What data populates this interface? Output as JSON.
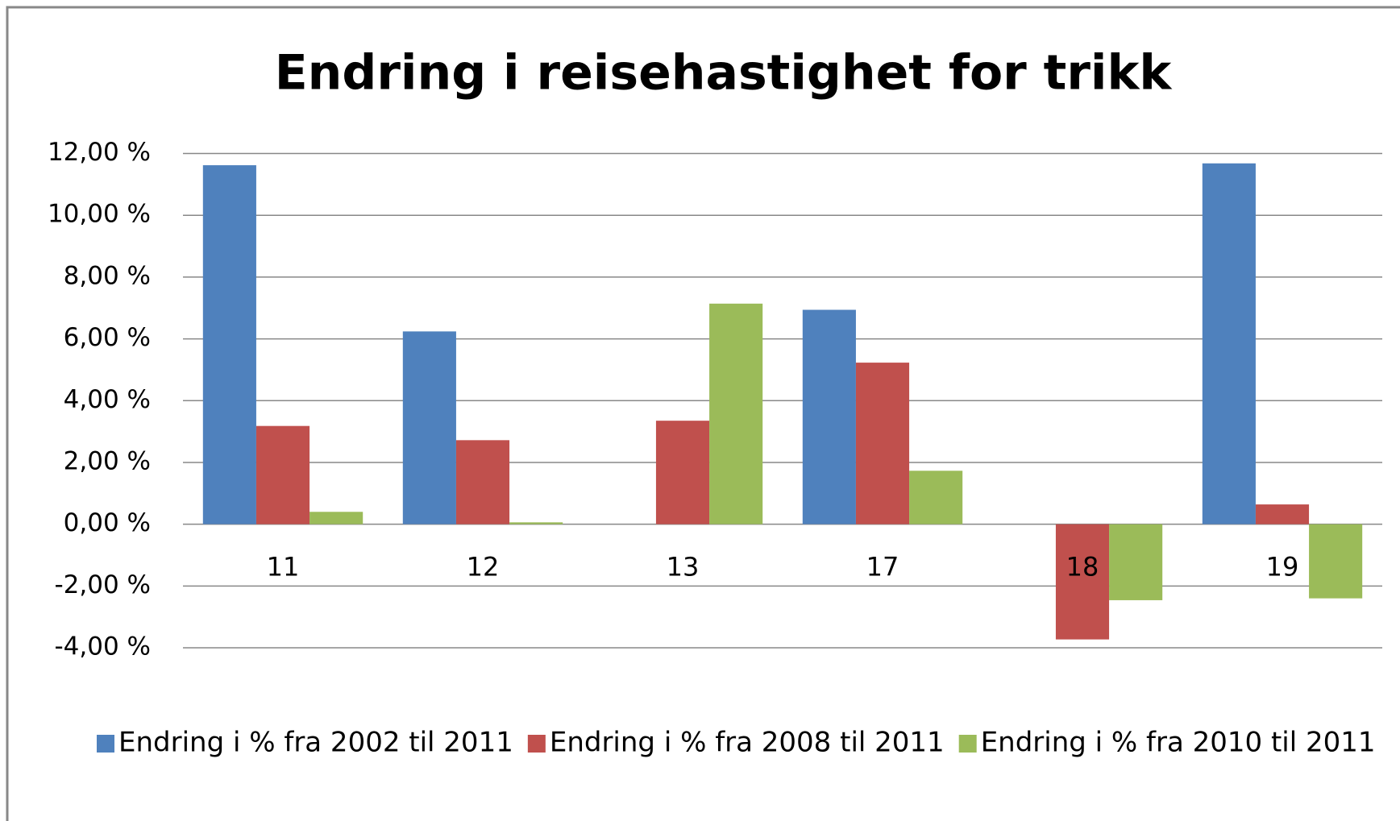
{
  "chart_data": {
    "type": "bar",
    "title": "Endring i reisehastighet for trikk",
    "categories": [
      "11",
      "12",
      "13",
      "17",
      "18",
      "19"
    ],
    "series": [
      {
        "name": "Endring i % fra 2002 til 2011",
        "color": "#4f81bd",
        "values": [
          11.62,
          6.24,
          0,
          6.94,
          0,
          11.68
        ]
      },
      {
        "name": "Endring i % fra 2008 til 2011",
        "color": "#c0504d",
        "values": [
          3.18,
          2.72,
          3.35,
          5.23,
          -3.73,
          0.64
        ]
      },
      {
        "name": "Endring i % fra 2010 til 2011",
        "color": "#9bbb59",
        "values": [
          0.4,
          0.06,
          7.14,
          1.73,
          -2.46,
          -2.4
        ]
      }
    ],
    "ylim": [
      -4,
      12
    ],
    "yticks": [
      {
        "value": -4,
        "label": "-4,00 %"
      },
      {
        "value": -2,
        "label": "-2,00 %"
      },
      {
        "value": 0,
        "label": "0,00 %"
      },
      {
        "value": 2,
        "label": "2,00 %"
      },
      {
        "value": 4,
        "label": "4,00 %"
      },
      {
        "value": 6,
        "label": "6,00 %"
      },
      {
        "value": 8,
        "label": "8,00 %"
      },
      {
        "value": 10,
        "label": "10,00 %"
      },
      {
        "value": 12,
        "label": "12,00 %"
      }
    ],
    "grid": true,
    "legend": "bottom"
  }
}
